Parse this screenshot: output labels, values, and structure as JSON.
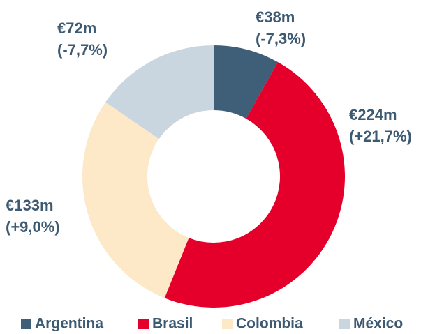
{
  "chart_data": {
    "type": "donut",
    "categories": [
      "Argentina",
      "Brasil",
      "Colombia",
      "México"
    ],
    "values": [
      38,
      224,
      133,
      72
    ],
    "value_labels": [
      "€38m",
      "€224m",
      "€133m",
      "€72m"
    ],
    "changes": [
      "(-7,3%)",
      "(+21,7%)",
      "(+9,0%)",
      "(-7,7%)"
    ],
    "colors": [
      "#3f5f78",
      "#e4002b",
      "#fde8c8",
      "#c9d6e0"
    ],
    "legend": "bottom"
  }
}
